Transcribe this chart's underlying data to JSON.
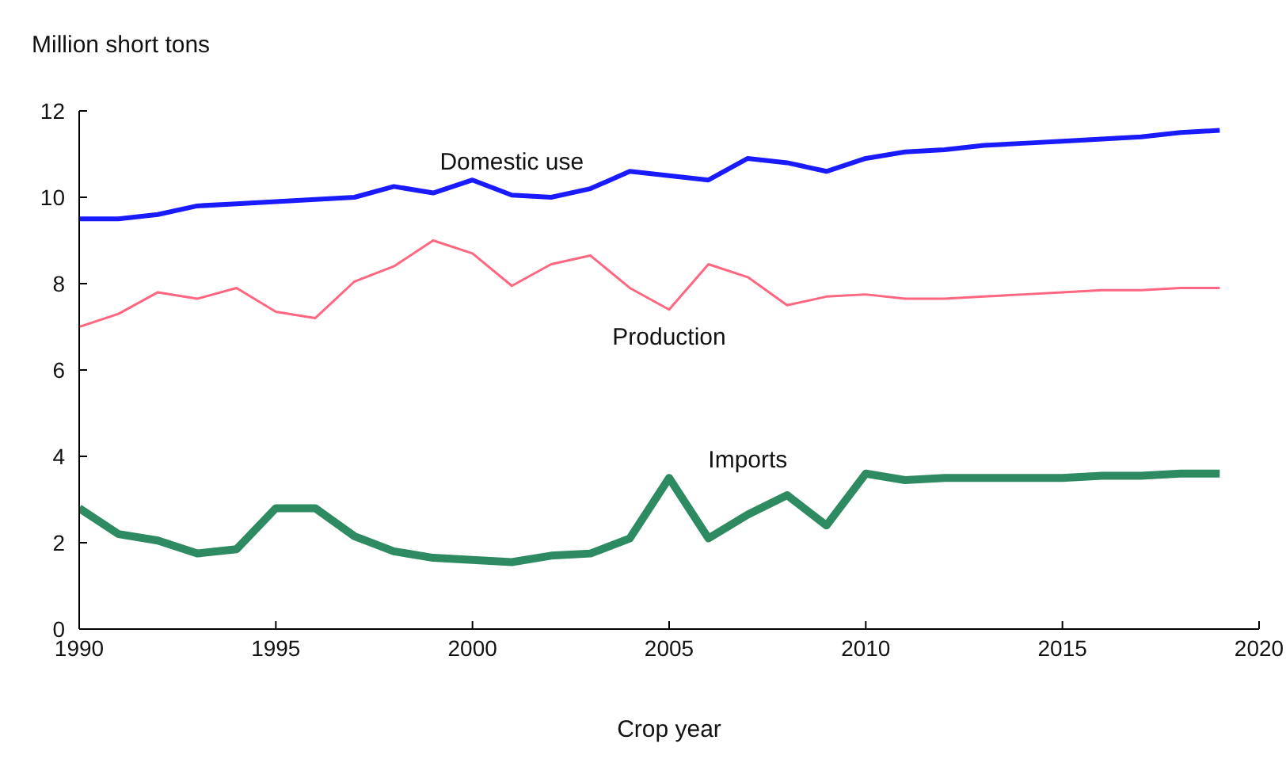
{
  "chart_data": {
    "type": "line",
    "ylabel": "Million short tons",
    "xlabel": "Crop year",
    "x": [
      1990,
      1991,
      1992,
      1993,
      1994,
      1995,
      1996,
      1997,
      1998,
      1999,
      2000,
      2001,
      2002,
      2003,
      2004,
      2005,
      2006,
      2007,
      2008,
      2009,
      2010,
      2011,
      2012,
      2013,
      2014,
      2015,
      2016,
      2017,
      2018,
      2019
    ],
    "series": [
      {
        "name": "Domestic use",
        "color": "#1a1aff",
        "values": [
          9.5,
          9.5,
          9.6,
          9.8,
          9.85,
          9.9,
          9.95,
          10.0,
          10.25,
          10.1,
          10.4,
          10.05,
          10.0,
          10.2,
          10.6,
          10.5,
          10.4,
          10.9,
          10.8,
          10.6,
          10.9,
          11.05,
          11.1,
          11.2,
          11.25,
          11.3,
          11.35,
          11.4,
          11.5,
          11.55
        ]
      },
      {
        "name": "Production",
        "color": "#ff6680",
        "values": [
          7.0,
          7.3,
          7.8,
          7.65,
          7.9,
          7.35,
          7.2,
          8.05,
          8.4,
          9.0,
          8.7,
          7.95,
          8.45,
          8.65,
          7.9,
          7.4,
          8.45,
          8.15,
          7.5,
          7.7,
          7.75,
          7.65,
          7.65,
          7.7,
          7.75,
          7.8,
          7.85,
          7.85,
          7.9,
          7.9
        ]
      },
      {
        "name": "Imports",
        "color": "#2e8b61",
        "values": [
          2.8,
          2.2,
          2.05,
          1.75,
          1.85,
          2.8,
          2.8,
          2.15,
          1.8,
          1.65,
          1.6,
          1.55,
          1.7,
          1.75,
          2.1,
          3.5,
          2.1,
          2.65,
          3.1,
          2.4,
          3.6,
          3.45,
          3.5,
          3.5,
          3.5,
          3.5,
          3.55,
          3.55,
          3.6,
          3.6
        ]
      }
    ],
    "xlim": [
      1990,
      2020
    ],
    "xticks": [
      1990,
      1995,
      2000,
      2005,
      2010,
      2015,
      2020
    ],
    "ylim": [
      0,
      12
    ],
    "yticks": [
      0,
      2,
      4,
      6,
      8,
      10,
      12
    ],
    "grid": false,
    "legend": false,
    "marker": "none",
    "line_style": "solid"
  }
}
